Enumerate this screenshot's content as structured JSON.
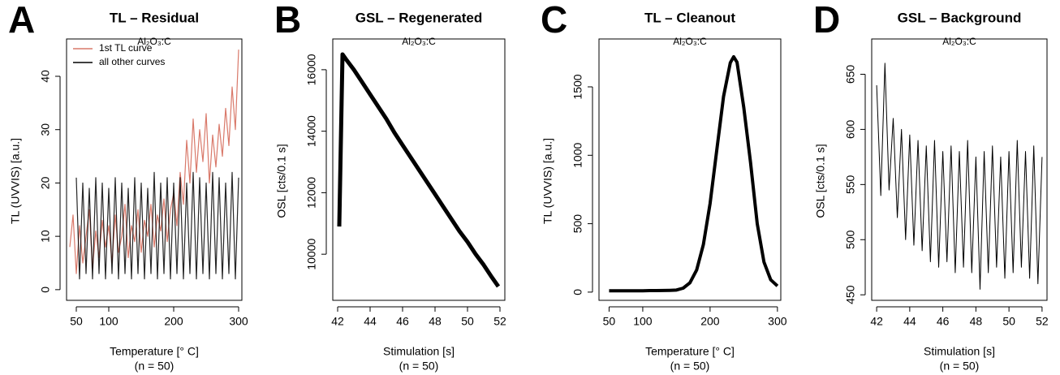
{
  "chart_data": [
    {
      "type": "line",
      "panel": "A",
      "title": "TL – Residual",
      "subtitle": "Al₂O₃:C",
      "x_label": "Temperature [° C]",
      "n_label": "(n = 50)",
      "y_label": "TL (UVVIS) [a.u.]",
      "x": [
        40,
        45,
        50,
        55,
        60,
        65,
        70,
        75,
        80,
        85,
        90,
        95,
        100,
        105,
        110,
        115,
        120,
        125,
        130,
        135,
        140,
        145,
        150,
        155,
        160,
        165,
        170,
        175,
        180,
        185,
        190,
        195,
        200,
        205,
        210,
        215,
        220,
        225,
        230,
        235,
        240,
        245,
        250,
        255,
        260,
        265,
        270,
        275,
        280,
        285,
        290,
        295,
        300
      ],
      "xlim": [
        35,
        305
      ],
      "xticks": [
        50,
        100,
        200,
        300
      ],
      "ylim": [
        -2,
        47
      ],
      "yticks": [
        0,
        10,
        20,
        30,
        40
      ],
      "legend": "top-left",
      "series": [
        {
          "name": "1st TL curve",
          "color": "#d9796a",
          "values": [
            8,
            14,
            3,
            12,
            5,
            10,
            15,
            4,
            11,
            6,
            13,
            8,
            12,
            5,
            14,
            7,
            10,
            16,
            6,
            12,
            9,
            15,
            7,
            13,
            10,
            16,
            8,
            14,
            11,
            17,
            9,
            15,
            18,
            12,
            22,
            16,
            28,
            20,
            32,
            22,
            30,
            24,
            33,
            20,
            29,
            23,
            31,
            25,
            34,
            27,
            38,
            30,
            45
          ]
        },
        {
          "name": "all other curves",
          "color": "#000000",
          "values": [
            null,
            null,
            21,
            2,
            20,
            3,
            19,
            2,
            21,
            3,
            20,
            2,
            19,
            3,
            21,
            2,
            20,
            3,
            19,
            2,
            21,
            3,
            20,
            2,
            19,
            3,
            22,
            2,
            20,
            3,
            21,
            2,
            20,
            3,
            21,
            2,
            20,
            3,
            22,
            2,
            21,
            3,
            20,
            2,
            22,
            3,
            21,
            2,
            20,
            3,
            22,
            2,
            21
          ]
        }
      ]
    },
    {
      "type": "line",
      "panel": "B",
      "title": "GSL – Regenerated",
      "subtitle": "Al₂O₃:C",
      "x_label": "Stimulation [s]",
      "n_label": "(n = 50)",
      "y_label": "OSL [cts/0.1 s]",
      "x": [
        42.1,
        42.3,
        42.5,
        43,
        43.5,
        44,
        44.5,
        45,
        45.5,
        46,
        46.5,
        47,
        47.5,
        48,
        48.5,
        49,
        49.5,
        50,
        50.5,
        51,
        51.5,
        51.9
      ],
      "xlim": [
        41.7,
        52.3
      ],
      "xticks": [
        42,
        44,
        46,
        48,
        50,
        52
      ],
      "ylim": [
        8500,
        17000
      ],
      "yticks": [
        10000,
        12000,
        14000,
        16000
      ],
      "series": [
        {
          "color": "#000000",
          "values": [
            10900,
            16500,
            16350,
            16000,
            15600,
            15200,
            14800,
            14400,
            13950,
            13550,
            13150,
            12750,
            12350,
            11950,
            11550,
            11150,
            10750,
            10400,
            10000,
            9650,
            9250,
            8950
          ]
        }
      ]
    },
    {
      "type": "line",
      "panel": "C",
      "title": "TL – Cleanout",
      "subtitle": "Al₂O₃:C",
      "x_label": "Temperature [° C]",
      "n_label": "(n = 50)",
      "y_label": "TL (UVVIS) [a.u.]",
      "x": [
        50,
        60,
        70,
        80,
        90,
        100,
        110,
        120,
        130,
        140,
        150,
        160,
        170,
        180,
        190,
        200,
        210,
        220,
        230,
        235,
        240,
        250,
        260,
        270,
        280,
        290,
        300
      ],
      "xlim": [
        35,
        305
      ],
      "xticks": [
        50,
        100,
        200,
        300
      ],
      "ylim": [
        -60,
        1850
      ],
      "yticks": [
        0,
        500,
        1000,
        1500
      ],
      "series": [
        {
          "color": "#000000",
          "values": [
            10,
            10,
            10,
            10,
            10,
            10,
            11,
            11,
            12,
            13,
            15,
            29,
            68,
            161,
            347,
            648,
            1041,
            1430,
            1676,
            1720,
            1680,
            1350,
            950,
            500,
            220,
            90,
            45
          ]
        }
      ]
    },
    {
      "type": "line",
      "panel": "D",
      "title": "GSL – Background",
      "subtitle": "Al₂O₃:C",
      "x_label": "Stimulation [s]",
      "n_label": "(n = 50)",
      "y_label": "OSL [cts/0.1 s]",
      "x": [
        42,
        42.25,
        42.5,
        42.75,
        43,
        43.25,
        43.5,
        43.75,
        44,
        44.25,
        44.5,
        44.75,
        45,
        45.25,
        45.5,
        45.75,
        46,
        46.25,
        46.5,
        46.75,
        47,
        47.25,
        47.5,
        47.75,
        48,
        48.25,
        48.5,
        48.75,
        49,
        49.25,
        49.5,
        49.75,
        50,
        50.25,
        50.5,
        50.75,
        51,
        51.25,
        51.5,
        51.75,
        52
      ],
      "xlim": [
        41.7,
        52.3
      ],
      "xticks": [
        42,
        44,
        46,
        48,
        50,
        52
      ],
      "ylim": [
        445,
        682
      ],
      "yticks": [
        450,
        500,
        550,
        600,
        650
      ],
      "series": [
        {
          "color": "#000000",
          "values": [
            640,
            540,
            660,
            545,
            610,
            520,
            600,
            500,
            595,
            495,
            590,
            490,
            585,
            480,
            590,
            475,
            580,
            480,
            585,
            470,
            580,
            475,
            590,
            470,
            575,
            455,
            580,
            470,
            585,
            475,
            575,
            465,
            580,
            470,
            590,
            475,
            580,
            465,
            585,
            460,
            575
          ]
        }
      ]
    }
  ]
}
